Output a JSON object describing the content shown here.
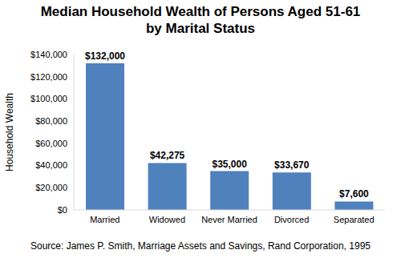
{
  "chart_data": {
    "type": "bar",
    "title": "Median Household Wealth of Persons Aged 51-61\nby Marital Status",
    "y_label": "Household Wealth",
    "source": "Source: James P. Smith, Marriage Assets and Savings, Rand Corporation, 1995",
    "categories": [
      "Married",
      "Widowed",
      "Never Married",
      "Divorced",
      "Separated"
    ],
    "values": [
      132000,
      42275,
      35000,
      33670,
      7600
    ],
    "value_labels": [
      "$132,000",
      "$42,275",
      "$35,000",
      "$33,670",
      "$7,600"
    ],
    "data_labels": true,
    "color": "#4f81bd",
    "ylim": [
      0,
      140000
    ],
    "yticks": [
      {
        "value": 0,
        "label": "$0"
      },
      {
        "value": 20000,
        "label": "$20,000"
      },
      {
        "value": 40000,
        "label": "$40,000"
      },
      {
        "value": 60000,
        "label": "$60,000"
      },
      {
        "value": 80000,
        "label": "$80,000"
      },
      {
        "value": 100000,
        "label": "$100,000"
      },
      {
        "value": 120000,
        "label": "$120,000"
      },
      {
        "value": 140000,
        "label": "$140,000"
      }
    ],
    "grid": false,
    "legend": false
  }
}
